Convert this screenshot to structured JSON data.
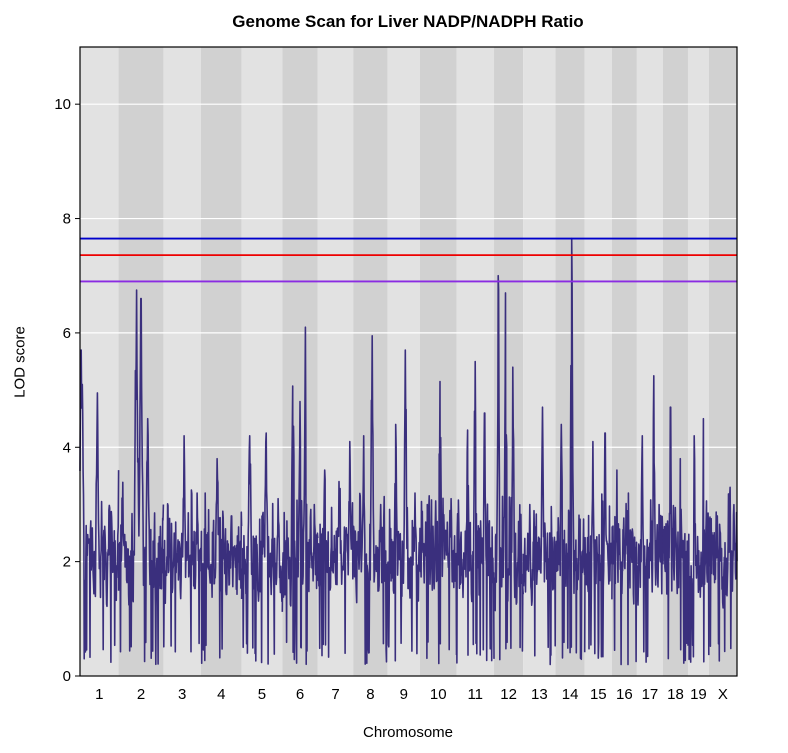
{
  "chart_data": {
    "type": "line",
    "title": "Genome Scan for Liver NADP/NADPH Ratio",
    "xlabel": "Chromosome",
    "ylabel": "LOD score",
    "ylim": [
      0,
      11
    ],
    "yticks": [
      0,
      2,
      4,
      6,
      8,
      10
    ],
    "grid": true,
    "series_color": "#3a2f7d",
    "chromosomes": [
      {
        "label": "1",
        "span": 37,
        "peaks": [
          [
            0.03,
            5.7
          ],
          [
            0.06,
            5.1
          ],
          [
            0.45,
            4.95
          ],
          [
            0.75,
            2.9
          ],
          [
            1.0,
            3.6
          ]
        ]
      },
      {
        "label": "2",
        "span": 43,
        "peaks": [
          [
            0.02,
            1.8
          ],
          [
            0.4,
            6.75
          ],
          [
            0.5,
            6.6
          ],
          [
            0.65,
            4.5
          ],
          [
            1.0,
            3.0
          ]
        ]
      },
      {
        "label": "3",
        "span": 36,
        "peaks": [
          [
            0.15,
            2.3
          ],
          [
            0.55,
            4.2
          ],
          [
            0.9,
            3.2
          ]
        ]
      },
      {
        "label": "4",
        "span": 39,
        "peaks": [
          [
            0.1,
            3.2
          ],
          [
            0.4,
            3.8
          ],
          [
            0.75,
            2.8
          ]
        ]
      },
      {
        "label": "5",
        "span": 39,
        "peaks": [
          [
            0.2,
            4.2
          ],
          [
            0.6,
            4.25
          ],
          [
            0.9,
            3.1
          ]
        ]
      },
      {
        "label": "6",
        "span": 34,
        "peaks": [
          [
            0.3,
            5.5
          ],
          [
            0.5,
            4.8
          ],
          [
            0.65,
            6.1
          ],
          [
            0.9,
            3.0
          ]
        ]
      },
      {
        "label": "7",
        "span": 34,
        "peaks": [
          [
            0.2,
            3.6
          ],
          [
            0.6,
            3.4
          ],
          [
            0.9,
            4.1
          ]
        ]
      },
      {
        "label": "8",
        "span": 33,
        "peaks": [
          [
            0.3,
            4.2
          ],
          [
            0.55,
            5.95
          ],
          [
            0.8,
            3.0
          ]
        ]
      },
      {
        "label": "9",
        "span": 31,
        "peaks": [
          [
            0.25,
            4.4
          ],
          [
            0.55,
            5.7
          ],
          [
            0.85,
            3.2
          ]
        ]
      },
      {
        "label": "10",
        "span": 35,
        "peaks": [
          [
            0.2,
            3.0
          ],
          [
            0.55,
            5.15
          ],
          [
            0.85,
            3.1
          ]
        ]
      },
      {
        "label": "11",
        "span": 36,
        "peaks": [
          [
            0.3,
            4.3
          ],
          [
            0.5,
            5.5
          ],
          [
            0.75,
            4.6
          ]
        ]
      },
      {
        "label": "12",
        "span": 28,
        "peaks": [
          [
            0.15,
            7.0
          ],
          [
            0.4,
            6.7
          ],
          [
            0.65,
            5.4
          ],
          [
            0.9,
            3.5
          ]
        ]
      },
      {
        "label": "13",
        "span": 31,
        "peaks": [
          [
            0.2,
            3.0
          ],
          [
            0.6,
            4.7
          ],
          [
            0.85,
            3.7
          ]
        ]
      },
      {
        "label": "14",
        "span": 28,
        "peaks": [
          [
            0.2,
            4.4
          ],
          [
            0.55,
            7.65
          ],
          [
            0.85,
            3.0
          ]
        ]
      },
      {
        "label": "15",
        "span": 26,
        "peaks": [
          [
            0.3,
            4.1
          ],
          [
            0.75,
            4.25
          ]
        ]
      },
      {
        "label": "16",
        "span": 24,
        "peaks": [
          [
            0.2,
            3.6
          ],
          [
            0.65,
            3.5
          ]
        ]
      },
      {
        "label": "17",
        "span": 25,
        "peaks": [
          [
            0.2,
            4.2
          ],
          [
            0.65,
            5.25
          ],
          [
            0.85,
            3.0
          ]
        ]
      },
      {
        "label": "18",
        "span": 24,
        "peaks": [
          [
            0.3,
            4.7
          ],
          [
            0.7,
            3.8
          ]
        ]
      },
      {
        "label": "19",
        "span": 20,
        "peaks": [
          [
            0.3,
            4.2
          ],
          [
            0.75,
            4.5
          ]
        ]
      },
      {
        "label": "X",
        "span": 27,
        "peaks": [
          [
            0.3,
            2.8
          ],
          [
            0.75,
            3.3
          ]
        ]
      }
    ],
    "thresholds": [
      {
        "value": 7.65,
        "color": "#0000cc"
      },
      {
        "value": 7.36,
        "color": "#ee0000"
      },
      {
        "value": 6.9,
        "color": "#8a2be2"
      }
    ],
    "band_colors": [
      "#e2e2e2",
      "#d1d1d1"
    ]
  }
}
